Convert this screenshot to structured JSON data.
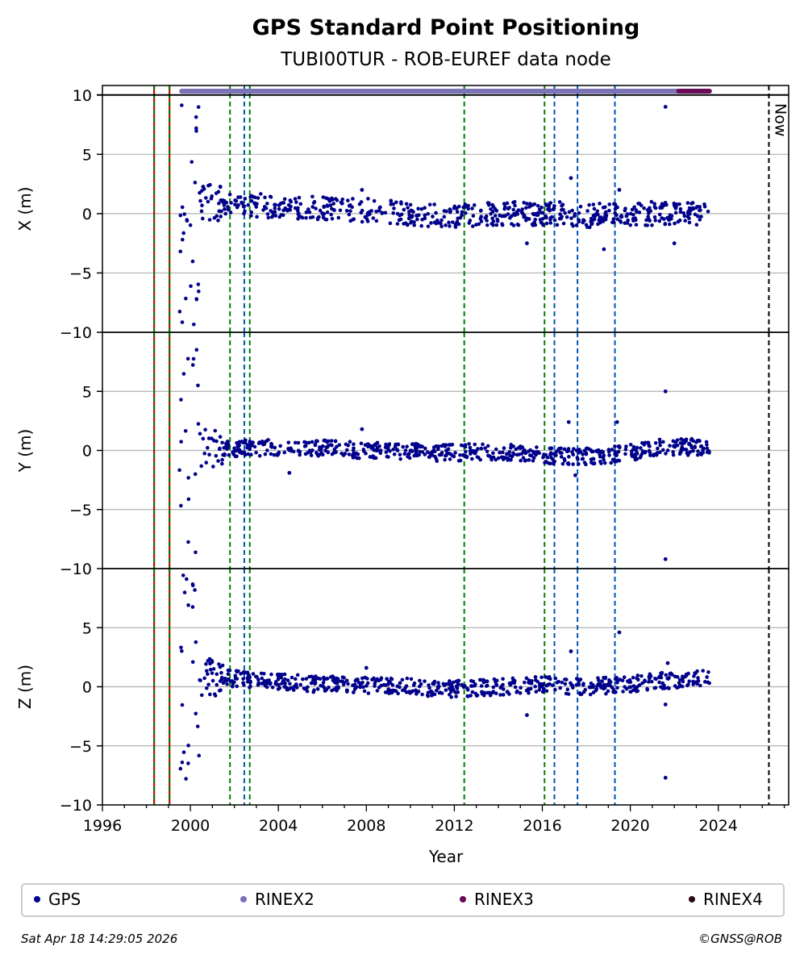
{
  "header": {
    "title": "GPS Standard Point Positioning",
    "subtitle": "TUBI00TUR - ROB-EUREF data node"
  },
  "footer": {
    "timestamp": "Sat Apr 18 14:29:05 2026",
    "credit": "©GNSS@ROB"
  },
  "legend": [
    {
      "label": "GPS",
      "color": "#00008b"
    },
    {
      "label": "RINEX2",
      "color": "#7b72b8"
    },
    {
      "label": "RINEX3",
      "color": "#6a0a5a"
    },
    {
      "label": "RINEX4",
      "color": "#2a0a1a"
    }
  ],
  "chart_data": {
    "type": "scatter",
    "xlabel": "Year",
    "xlim": [
      1996,
      2027.2
    ],
    "xticks": [
      1996,
      2000,
      2004,
      2008,
      2012,
      2016,
      2020,
      2024
    ],
    "now_label": "Now",
    "now_x": 2026.3,
    "panels": [
      {
        "ylabel": "X (m)",
        "ylim": [
          -10,
          10.8
        ],
        "yticks": [
          10,
          5,
          0,
          -5,
          -10
        ]
      },
      {
        "ylabel": "Y (m)",
        "ylim": [
          -10,
          10
        ],
        "yticks": [
          5,
          0,
          -5,
          -10
        ]
      },
      {
        "ylabel": "Z (m)",
        "ylim": [
          -10,
          10
        ],
        "yticks": [
          5,
          0,
          -5,
          -10
        ]
      }
    ],
    "event_lines": [
      {
        "x": 1998.35,
        "color": "#cc0000",
        "style": "solid"
      },
      {
        "x": 1998.35,
        "color": "#008000",
        "style": "dashed"
      },
      {
        "x": 1999.05,
        "color": "#cc0000",
        "style": "solid"
      },
      {
        "x": 1999.05,
        "color": "#008000",
        "style": "dashed"
      },
      {
        "x": 2001.8,
        "color": "#008000",
        "style": "dashed"
      },
      {
        "x": 2002.45,
        "color": "#0055aa",
        "style": "dashed"
      },
      {
        "x": 2002.7,
        "color": "#008000",
        "style": "dashed"
      },
      {
        "x": 2012.45,
        "color": "#008000",
        "style": "dashed"
      },
      {
        "x": 2016.1,
        "color": "#008000",
        "style": "dashed"
      },
      {
        "x": 2016.55,
        "color": "#0055aa",
        "style": "dashed"
      },
      {
        "x": 2017.6,
        "color": "#0055aa",
        "style": "dashed"
      },
      {
        "x": 2019.3,
        "color": "#0055aa",
        "style": "dashed"
      }
    ],
    "data_span": [
      1999.5,
      2023.6
    ],
    "rinex2_span": [
      1999.6,
      2022.2
    ],
    "rinex3_span": [
      2022.2,
      2023.6
    ],
    "series": [
      {
        "name": "GPS",
        "panel": "X",
        "x": [
          1999.6,
          1999.8,
          2000.0,
          2000.2,
          2000.5,
          2001.0,
          2002.0,
          2003.0,
          2004.0,
          2005.0,
          2006.0,
          2007.0,
          2008.0,
          2009.0,
          2010.0,
          2011.0,
          2012.0,
          2013.0,
          2014.0,
          2015.0,
          2016.0,
          2017.0,
          2018.0,
          2019.0,
          2020.0,
          2021.0,
          2022.0,
          2023.0,
          2023.5
        ],
        "y": [
          0,
          0.5,
          0,
          0.5,
          1.0,
          1.0,
          0.8,
          0.7,
          0.6,
          0.5,
          0.4,
          0.3,
          0.3,
          0.2,
          0,
          -0.2,
          -0.2,
          -0.1,
          0,
          0,
          0,
          0,
          -0.2,
          -0.1,
          0,
          0,
          0,
          0,
          0
        ]
      },
      {
        "name": "GPS",
        "panel": "Y",
        "x": [
          1999.6,
          1999.8,
          2000.0,
          2000.2,
          2000.5,
          2001.0,
          2002.0,
          2003.0,
          2004.0,
          2005.0,
          2006.0,
          2007.0,
          2008.0,
          2009.0,
          2010.0,
          2011.0,
          2012.0,
          2013.0,
          2014.0,
          2015.0,
          2016.0,
          2017.0,
          2018.0,
          2019.0,
          2020.0,
          2021.0,
          2022.0,
          2023.0,
          2023.5
        ],
        "y": [
          0,
          -1.0,
          -0.5,
          0.3,
          0.2,
          0.2,
          0.2,
          0.2,
          0.2,
          0.2,
          0.2,
          0.1,
          0,
          0,
          -0.1,
          -0.2,
          -0.2,
          -0.1,
          -0.1,
          -0.2,
          -0.4,
          -0.5,
          -0.5,
          -0.4,
          -0.2,
          0.2,
          0.3,
          0.3,
          0.4
        ]
      },
      {
        "name": "GPS",
        "panel": "Z",
        "x": [
          1999.6,
          1999.8,
          2000.0,
          2000.2,
          2000.5,
          2001.0,
          2002.0,
          2003.0,
          2004.0,
          2005.0,
          2006.0,
          2007.0,
          2008.0,
          2009.0,
          2010.0,
          2011.0,
          2012.0,
          2013.0,
          2014.0,
          2015.0,
          2016.0,
          2017.0,
          2018.0,
          2019.0,
          2020.0,
          2021.0,
          2022.0,
          2023.0,
          2023.5
        ],
        "y": [
          0,
          1.5,
          0.5,
          0.8,
          0.8,
          0.8,
          0.7,
          0.5,
          0.4,
          0.3,
          0.2,
          0.2,
          0.1,
          0.1,
          0,
          -0.2,
          -0.2,
          -0.1,
          0,
          0.1,
          0.2,
          0.1,
          0,
          0.1,
          0.2,
          0.4,
          0.6,
          0.7,
          0.8
        ]
      }
    ],
    "outliers": [
      {
        "panel": "X",
        "x": 2021.6,
        "y": 9.0
      },
      {
        "panel": "X",
        "x": 2017.3,
        "y": 3.0
      },
      {
        "panel": "X",
        "x": 2019.5,
        "y": 2.0
      },
      {
        "panel": "X",
        "x": 2018.8,
        "y": -3.0
      },
      {
        "panel": "X",
        "x": 2022.0,
        "y": -2.5
      },
      {
        "panel": "X",
        "x": 2015.3,
        "y": -2.5
      },
      {
        "panel": "X",
        "x": 2007.8,
        "y": 2.0
      },
      {
        "panel": "Y",
        "x": 2021.6,
        "y": 5.0
      },
      {
        "panel": "Y",
        "x": 2021.6,
        "y": -9.2
      },
      {
        "panel": "Y",
        "x": 2017.2,
        "y": 2.4
      },
      {
        "panel": "Y",
        "x": 2019.4,
        "y": 2.4
      },
      {
        "panel": "Y",
        "x": 2004.5,
        "y": -1.9
      },
      {
        "panel": "Y",
        "x": 2007.8,
        "y": 1.8
      },
      {
        "panel": "Y",
        "x": 2017.5,
        "y": -2.1
      },
      {
        "panel": "Z",
        "x": 2017.3,
        "y": 3.0
      },
      {
        "panel": "Z",
        "x": 2019.5,
        "y": 4.6
      },
      {
        "panel": "Z",
        "x": 2021.6,
        "y": -7.7
      },
      {
        "panel": "Z",
        "x": 2021.6,
        "y": -1.5
      },
      {
        "panel": "Z",
        "x": 2015.3,
        "y": -2.4
      },
      {
        "panel": "Z",
        "x": 2021.7,
        "y": 2.0
      },
      {
        "panel": "Z",
        "x": 2008.0,
        "y": 1.6
      }
    ],
    "grid": "y",
    "legend_position": "bottom"
  }
}
